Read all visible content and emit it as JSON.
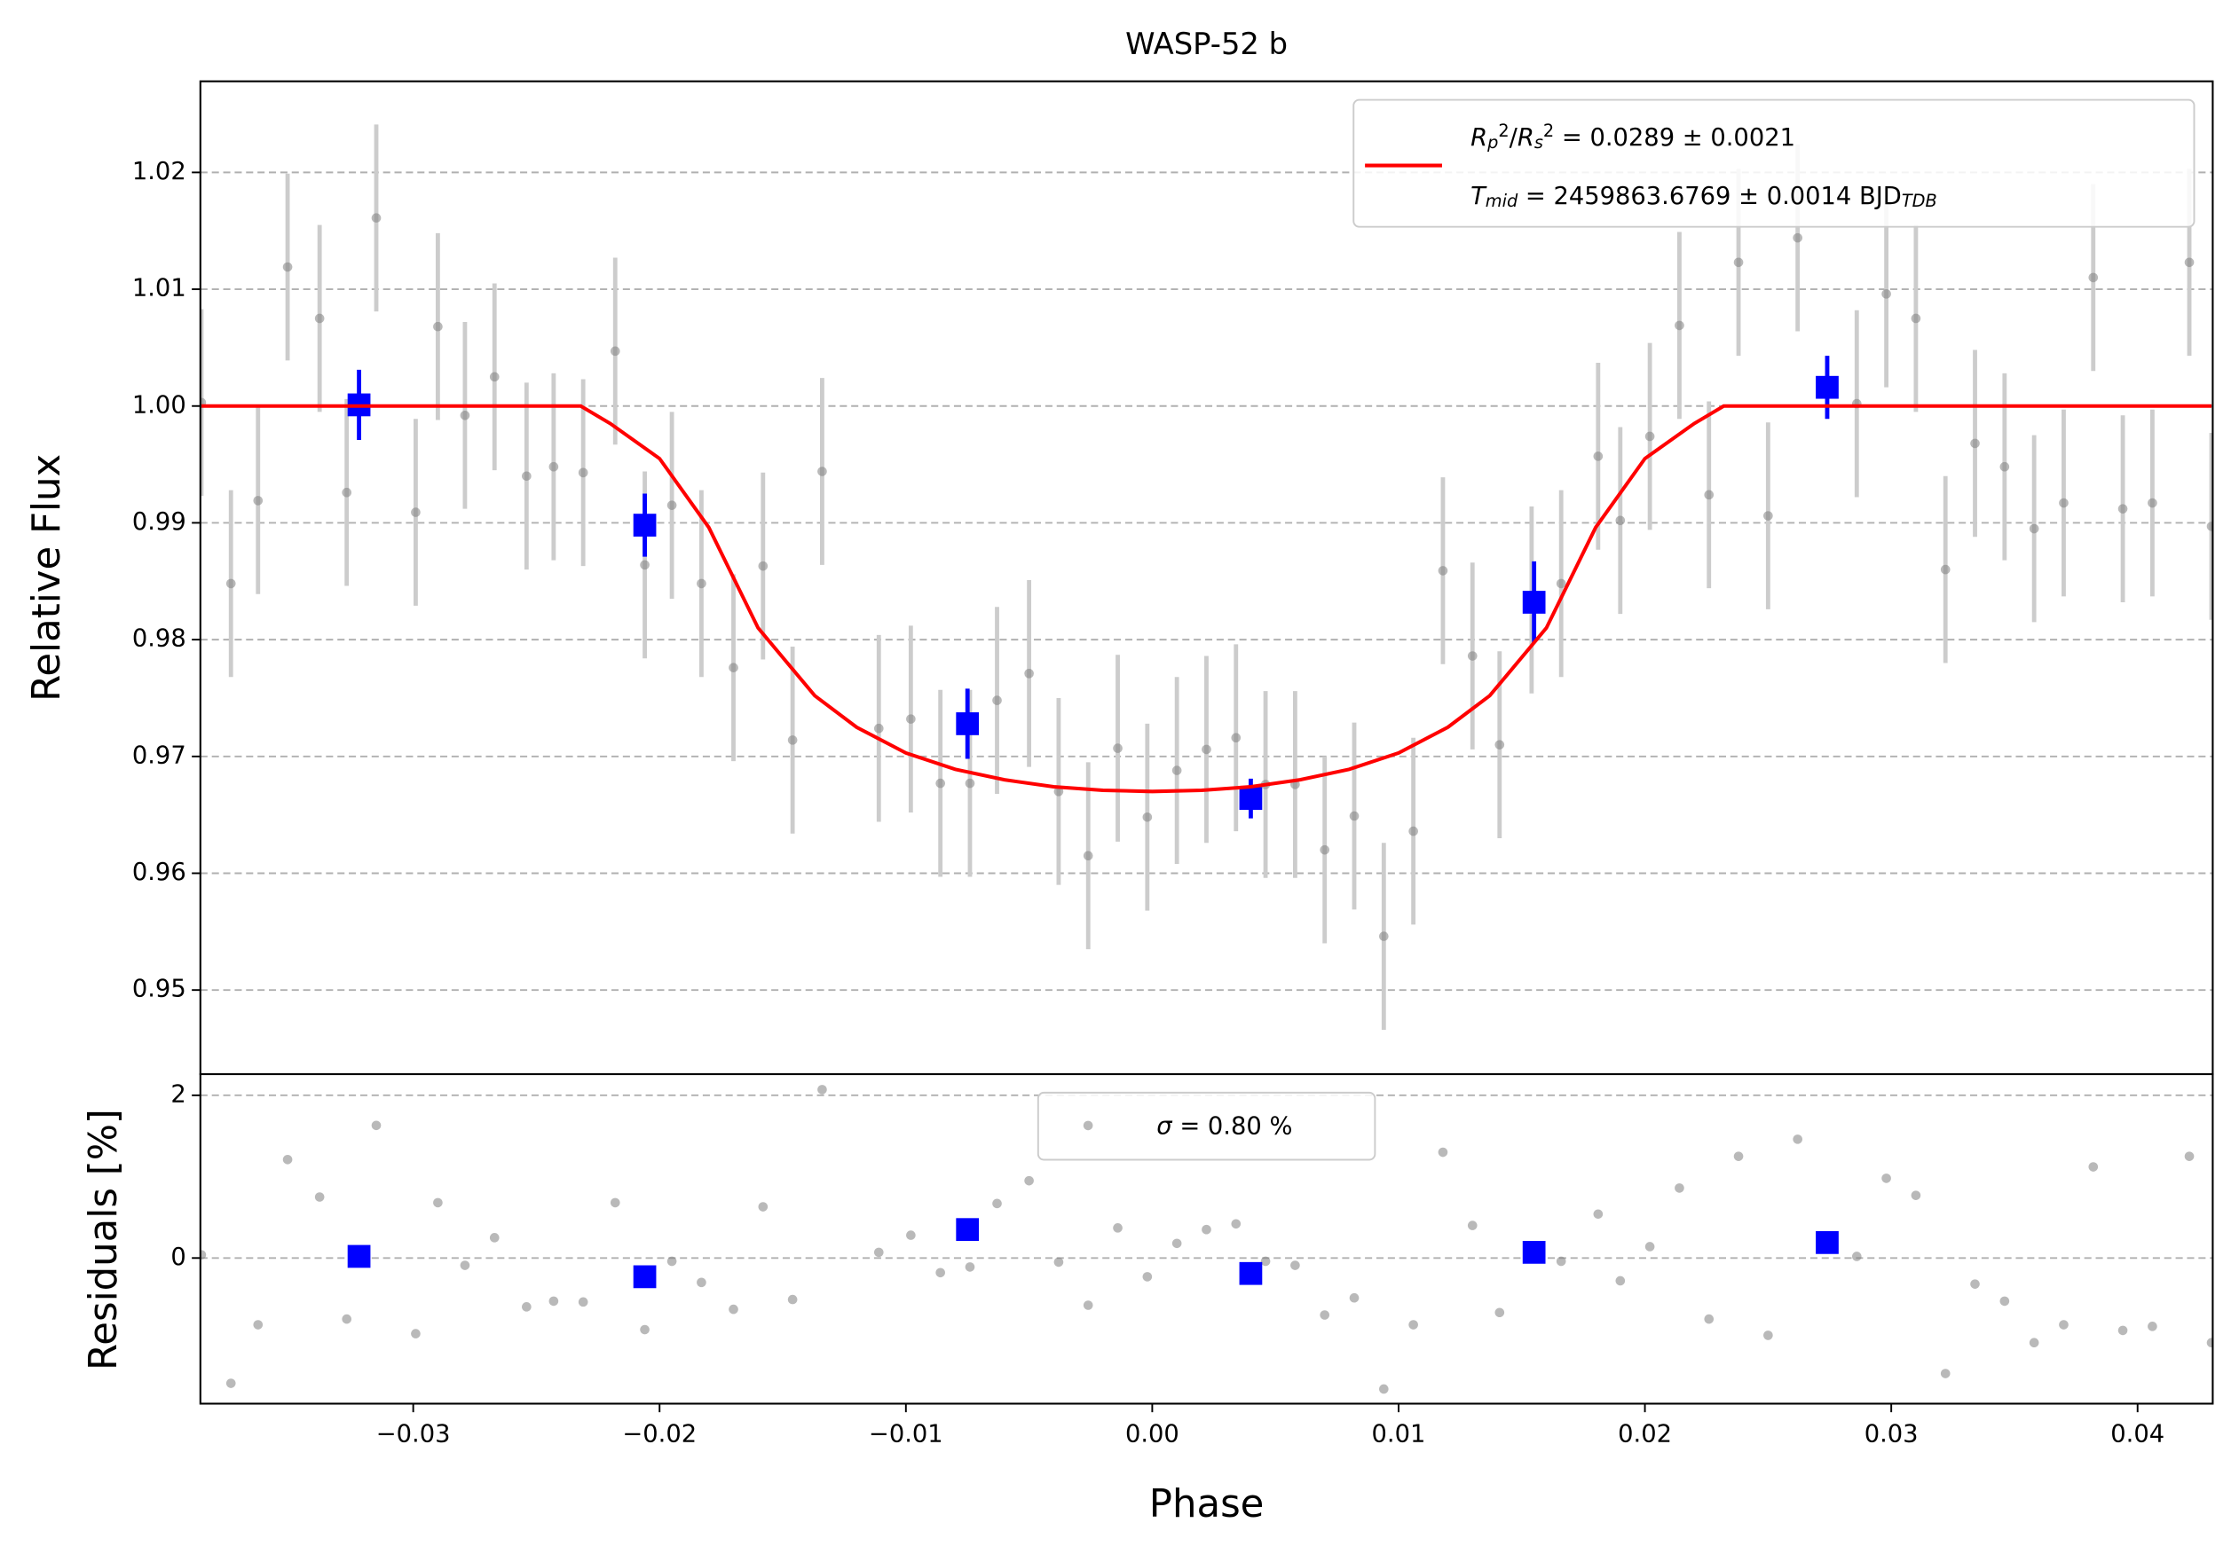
{
  "chart_data": [
    {
      "type": "scatter",
      "title": "WASP-52 b",
      "ylabel": "Relative Flux",
      "xlim": [
        -0.03864,
        0.04305
      ],
      "ylim": [
        0.9428,
        1.0278
      ],
      "yticks": [
        0.95,
        0.96,
        0.97,
        0.98,
        0.99,
        {
          "value": 1.0,
          "label": "1.00"
        },
        1.01,
        1.02
      ],
      "grid": "y",
      "legend": "upper right",
      "series": [
        {
          "color": "#808080",
          "error_color": "#cccccc",
          "x": [
            -0.0386,
            -0.0374,
            -0.0363,
            -0.0351,
            -0.0338,
            -0.0327,
            -0.0315,
            -0.0299,
            -0.029,
            -0.0279,
            -0.0267,
            -0.0254,
            -0.0243,
            -0.0231,
            -0.0218,
            -0.0206,
            -0.0195,
            -0.0183,
            -0.017,
            -0.0158,
            -0.0146,
            -0.0134,
            -0.0111,
            -0.0098,
            -0.0086,
            -0.0074,
            -0.0063,
            -0.005,
            -0.0038,
            -0.0026,
            -0.0014,
            -0.0002,
            0.001,
            0.0022,
            0.0034,
            0.0046,
            0.0058,
            0.007,
            0.0082,
            0.0094,
            0.0106,
            0.0118,
            0.013,
            0.0141,
            0.0154,
            0.0166,
            0.0181,
            0.019,
            0.0202,
            0.0214,
            0.0226,
            0.0238,
            0.025,
            0.0262,
            0.0286,
            0.0298,
            0.031,
            0.0322,
            0.0334,
            0.0346,
            0.0358,
            0.037,
            0.0382,
            0.0394,
            0.0406,
            0.0421,
            0.043
          ],
          "values": [
            1.0003,
            0.9848,
            0.9919,
            1.0119,
            1.0075,
            0.9926,
            1.0161,
            0.9909,
            1.0068,
            0.9992,
            1.0025,
            0.994,
            0.9948,
            0.9943,
            1.0047,
            0.9864,
            0.9915,
            0.9848,
            0.9776,
            0.9863,
            0.9714,
            0.9944,
            0.9724,
            0.9732,
            0.9677,
            0.9677,
            0.9748,
            0.9771,
            0.967,
            0.9615,
            0.9707,
            0.9648,
            0.9688,
            0.9706,
            0.9716,
            0.9676,
            0.9676,
            0.962,
            0.9649,
            0.9546,
            0.9636,
            0.9859,
            0.9786,
            0.971,
            0.9834,
            0.9848,
            0.9957,
            0.9902,
            0.9974,
            1.0069,
            0.9924,
            1.0123,
            0.9906,
            1.0144,
            1.0002,
            1.0096,
            1.0075,
            0.986,
            0.9968,
            0.9948,
            0.9895,
            0.9917,
            1.011,
            0.9912,
            0.9917,
            1.0123,
            0.9897
          ],
          "errors": [
            0.008,
            0.008,
            0.008,
            0.008,
            0.008,
            0.008,
            0.008,
            0.008,
            0.008,
            0.008,
            0.008,
            0.008,
            0.008,
            0.008,
            0.008,
            0.008,
            0.008,
            0.008,
            0.008,
            0.008,
            0.008,
            0.008,
            0.008,
            0.008,
            0.008,
            0.008,
            0.008,
            0.008,
            0.008,
            0.008,
            0.008,
            0.008,
            0.008,
            0.008,
            0.008,
            0.008,
            0.008,
            0.008,
            0.008,
            0.008,
            0.008,
            0.008,
            0.008,
            0.008,
            0.008,
            0.008,
            0.008,
            0.008,
            0.008,
            0.008,
            0.008,
            0.008,
            0.008,
            0.008,
            0.008,
            0.008,
            0.008,
            0.008,
            0.008,
            0.008,
            0.008,
            0.008,
            0.008,
            0.008,
            0.008,
            0.008,
            0.008
          ]
        },
        {
          "color": "#0000ff",
          "marker": "square",
          "x": [
            -0.0322,
            -0.0206,
            -0.0075,
            0.004,
            0.0155,
            0.0274
          ],
          "values": [
            1.0001,
            0.9898,
            0.9728,
            0.9664,
            0.9832,
            1.0016
          ],
          "errors": [
            0.003,
            0.0027,
            0.003,
            0.0017,
            0.0035,
            0.0027
          ]
        },
        {
          "color": "#ff0000",
          "line": true,
          "name": [
            [
              {
                "text": "R",
                "style": "it"
              },
              {
                "text": "p",
                "style": "sub"
              },
              {
                "text": "2",
                "style": "sup"
              },
              {
                "text": "/",
                "style": ""
              },
              {
                "text": "R",
                "style": "it"
              },
              {
                "text": "s",
                "style": "sub"
              },
              {
                "text": "2",
                "style": "sup"
              },
              {
                "text": " = 0.0289 ± 0.0021",
                "style": ""
              }
            ],
            [
              {
                "text": "T",
                "style": "it"
              },
              {
                "text": "mid",
                "style": "sub"
              },
              {
                "text": " = 2459863.6769 ± 0.0014 BJD",
                "style": ""
              },
              {
                "text": "TDB",
                "style": "sub"
              }
            ]
          ],
          "x": [
            -0.0386,
            -0.0232,
            -0.022,
            -0.02,
            -0.018,
            -0.016,
            -0.0137,
            -0.012,
            -0.01,
            -0.008,
            -0.006,
            -0.004,
            -0.002,
            0,
            0.002,
            0.004,
            0.006,
            0.008,
            0.01,
            0.012,
            0.0137,
            0.016,
            0.018,
            0.02,
            0.022,
            0.0232,
            0.043
          ],
          "values": [
            1.0,
            1.0,
            0.9985,
            0.9955,
            0.9896,
            0.981,
            0.9752,
            0.9725,
            0.9703,
            0.9689,
            0.968,
            0.9674,
            0.9671,
            0.967,
            0.9671,
            0.9674,
            0.968,
            0.9689,
            0.9703,
            0.9725,
            0.9752,
            0.981,
            0.9896,
            0.9955,
            0.9985,
            1.0,
            1.0
          ]
        }
      ]
    },
    {
      "type": "scatter",
      "xlabel": "Phase",
      "ylabel": "Residuals [%]",
      "xlim": [
        -0.03864,
        0.04305
      ],
      "ylim": [
        -1.79,
        2.26
      ],
      "xticks": [
        {
          "value": -0.03,
          "label": "−0.03"
        },
        {
          "value": -0.02,
          "label": "−0.02"
        },
        {
          "value": -0.01,
          "label": "−0.01"
        },
        {
          "value": 0,
          "label": "0.00"
        },
        0.01,
        0.02,
        0.03,
        0.04
      ],
      "yticks": [
        0,
        2
      ],
      "grid": "y",
      "legend": "upper center",
      "series": [
        {
          "color": "#808080",
          "name": [
            [
              {
                "text": "σ",
                "style": "it"
              },
              {
                "text": " = 0.80 %",
                "style": ""
              }
            ]
          ],
          "x": [
            -0.0386,
            -0.0374,
            -0.0363,
            -0.0351,
            -0.0338,
            -0.0327,
            -0.0315,
            -0.0299,
            -0.029,
            -0.0279,
            -0.0267,
            -0.0254,
            -0.0243,
            -0.0231,
            -0.0218,
            -0.0206,
            -0.0195,
            -0.0183,
            -0.017,
            -0.0158,
            -0.0146,
            -0.0134,
            -0.0111,
            -0.0098,
            -0.0086,
            -0.0074,
            -0.0063,
            -0.005,
            -0.0038,
            -0.0026,
            -0.0014,
            -0.0002,
            0.001,
            0.0022,
            0.0034,
            0.0046,
            0.0058,
            0.007,
            0.0082,
            0.0094,
            0.0106,
            0.0118,
            0.013,
            0.0141,
            0.0154,
            0.0166,
            0.0181,
            0.019,
            0.0202,
            0.0214,
            0.0226,
            0.0238,
            0.025,
            0.0262,
            0.0286,
            0.0298,
            0.031,
            0.0322,
            0.0334,
            0.0346,
            0.0358,
            0.037,
            0.0382,
            0.0394,
            0.0406,
            0.0421,
            0.043
          ],
          "values": [
            0.04,
            -1.54,
            -0.82,
            1.21,
            0.75,
            -0.75,
            1.63,
            -0.93,
            0.68,
            -0.09,
            0.25,
            -0.6,
            -0.53,
            -0.54,
            0.68,
            -0.88,
            -0.04,
            -0.3,
            -0.63,
            0.63,
            -0.51,
            2.07,
            0.07,
            0.28,
            -0.18,
            -0.11,
            0.67,
            0.95,
            -0.05,
            -0.58,
            0.37,
            -0.23,
            0.18,
            0.35,
            0.42,
            -0.04,
            -0.09,
            -0.7,
            -0.49,
            -1.61,
            -0.82,
            1.3,
            0.4,
            -0.67,
            0.04,
            -0.04,
            0.54,
            -0.28,
            0.14,
            0.86,
            -0.75,
            1.25,
            -0.95,
            1.46,
            0.02,
            0.98,
            0.77,
            -1.42,
            -0.32,
            -0.53,
            -1.04,
            -0.82,
            1.12,
            -0.89,
            -0.84,
            1.25,
            -1.04
          ]
        },
        {
          "color": "#0000ff",
          "marker": "square",
          "x": [
            -0.0322,
            -0.0206,
            -0.0075,
            0.004,
            0.0155,
            0.0274
          ],
          "values": [
            0.02,
            -0.23,
            0.35,
            -0.19,
            0.07,
            0.19
          ]
        }
      ]
    }
  ]
}
